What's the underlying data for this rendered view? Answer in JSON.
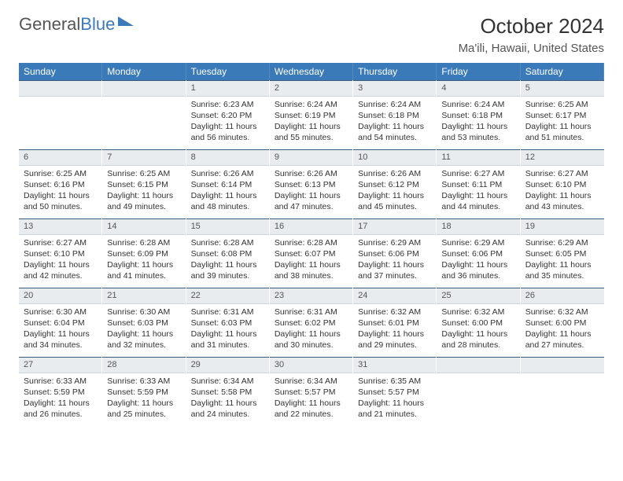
{
  "brand": {
    "part1": "General",
    "part2": "Blue"
  },
  "title": "October 2024",
  "location": "Ma'ili, Hawaii, United States",
  "colors": {
    "header_bg": "#3a7ab8",
    "daynum_bg": "#e8ecef",
    "border": "#3a5a7a",
    "text": "#333333"
  },
  "weekdays": [
    "Sunday",
    "Monday",
    "Tuesday",
    "Wednesday",
    "Thursday",
    "Friday",
    "Saturday"
  ],
  "weeks": [
    [
      {
        "n": "",
        "empty": true
      },
      {
        "n": "",
        "empty": true
      },
      {
        "n": "1",
        "sr": "Sunrise: 6:23 AM",
        "ss": "Sunset: 6:20 PM",
        "dl": "Daylight: 11 hours and 56 minutes."
      },
      {
        "n": "2",
        "sr": "Sunrise: 6:24 AM",
        "ss": "Sunset: 6:19 PM",
        "dl": "Daylight: 11 hours and 55 minutes."
      },
      {
        "n": "3",
        "sr": "Sunrise: 6:24 AM",
        "ss": "Sunset: 6:18 PM",
        "dl": "Daylight: 11 hours and 54 minutes."
      },
      {
        "n": "4",
        "sr": "Sunrise: 6:24 AM",
        "ss": "Sunset: 6:18 PM",
        "dl": "Daylight: 11 hours and 53 minutes."
      },
      {
        "n": "5",
        "sr": "Sunrise: 6:25 AM",
        "ss": "Sunset: 6:17 PM",
        "dl": "Daylight: 11 hours and 51 minutes."
      }
    ],
    [
      {
        "n": "6",
        "sr": "Sunrise: 6:25 AM",
        "ss": "Sunset: 6:16 PM",
        "dl": "Daylight: 11 hours and 50 minutes."
      },
      {
        "n": "7",
        "sr": "Sunrise: 6:25 AM",
        "ss": "Sunset: 6:15 PM",
        "dl": "Daylight: 11 hours and 49 minutes."
      },
      {
        "n": "8",
        "sr": "Sunrise: 6:26 AM",
        "ss": "Sunset: 6:14 PM",
        "dl": "Daylight: 11 hours and 48 minutes."
      },
      {
        "n": "9",
        "sr": "Sunrise: 6:26 AM",
        "ss": "Sunset: 6:13 PM",
        "dl": "Daylight: 11 hours and 47 minutes."
      },
      {
        "n": "10",
        "sr": "Sunrise: 6:26 AM",
        "ss": "Sunset: 6:12 PM",
        "dl": "Daylight: 11 hours and 45 minutes."
      },
      {
        "n": "11",
        "sr": "Sunrise: 6:27 AM",
        "ss": "Sunset: 6:11 PM",
        "dl": "Daylight: 11 hours and 44 minutes."
      },
      {
        "n": "12",
        "sr": "Sunrise: 6:27 AM",
        "ss": "Sunset: 6:10 PM",
        "dl": "Daylight: 11 hours and 43 minutes."
      }
    ],
    [
      {
        "n": "13",
        "sr": "Sunrise: 6:27 AM",
        "ss": "Sunset: 6:10 PM",
        "dl": "Daylight: 11 hours and 42 minutes."
      },
      {
        "n": "14",
        "sr": "Sunrise: 6:28 AM",
        "ss": "Sunset: 6:09 PM",
        "dl": "Daylight: 11 hours and 41 minutes."
      },
      {
        "n": "15",
        "sr": "Sunrise: 6:28 AM",
        "ss": "Sunset: 6:08 PM",
        "dl": "Daylight: 11 hours and 39 minutes."
      },
      {
        "n": "16",
        "sr": "Sunrise: 6:28 AM",
        "ss": "Sunset: 6:07 PM",
        "dl": "Daylight: 11 hours and 38 minutes."
      },
      {
        "n": "17",
        "sr": "Sunrise: 6:29 AM",
        "ss": "Sunset: 6:06 PM",
        "dl": "Daylight: 11 hours and 37 minutes."
      },
      {
        "n": "18",
        "sr": "Sunrise: 6:29 AM",
        "ss": "Sunset: 6:06 PM",
        "dl": "Daylight: 11 hours and 36 minutes."
      },
      {
        "n": "19",
        "sr": "Sunrise: 6:29 AM",
        "ss": "Sunset: 6:05 PM",
        "dl": "Daylight: 11 hours and 35 minutes."
      }
    ],
    [
      {
        "n": "20",
        "sr": "Sunrise: 6:30 AM",
        "ss": "Sunset: 6:04 PM",
        "dl": "Daylight: 11 hours and 34 minutes."
      },
      {
        "n": "21",
        "sr": "Sunrise: 6:30 AM",
        "ss": "Sunset: 6:03 PM",
        "dl": "Daylight: 11 hours and 32 minutes."
      },
      {
        "n": "22",
        "sr": "Sunrise: 6:31 AM",
        "ss": "Sunset: 6:03 PM",
        "dl": "Daylight: 11 hours and 31 minutes."
      },
      {
        "n": "23",
        "sr": "Sunrise: 6:31 AM",
        "ss": "Sunset: 6:02 PM",
        "dl": "Daylight: 11 hours and 30 minutes."
      },
      {
        "n": "24",
        "sr": "Sunrise: 6:32 AM",
        "ss": "Sunset: 6:01 PM",
        "dl": "Daylight: 11 hours and 29 minutes."
      },
      {
        "n": "25",
        "sr": "Sunrise: 6:32 AM",
        "ss": "Sunset: 6:00 PM",
        "dl": "Daylight: 11 hours and 28 minutes."
      },
      {
        "n": "26",
        "sr": "Sunrise: 6:32 AM",
        "ss": "Sunset: 6:00 PM",
        "dl": "Daylight: 11 hours and 27 minutes."
      }
    ],
    [
      {
        "n": "27",
        "sr": "Sunrise: 6:33 AM",
        "ss": "Sunset: 5:59 PM",
        "dl": "Daylight: 11 hours and 26 minutes."
      },
      {
        "n": "28",
        "sr": "Sunrise: 6:33 AM",
        "ss": "Sunset: 5:59 PM",
        "dl": "Daylight: 11 hours and 25 minutes."
      },
      {
        "n": "29",
        "sr": "Sunrise: 6:34 AM",
        "ss": "Sunset: 5:58 PM",
        "dl": "Daylight: 11 hours and 24 minutes."
      },
      {
        "n": "30",
        "sr": "Sunrise: 6:34 AM",
        "ss": "Sunset: 5:57 PM",
        "dl": "Daylight: 11 hours and 22 minutes."
      },
      {
        "n": "31",
        "sr": "Sunrise: 6:35 AM",
        "ss": "Sunset: 5:57 PM",
        "dl": "Daylight: 11 hours and 21 minutes."
      },
      {
        "n": "",
        "empty": true
      },
      {
        "n": "",
        "empty": true
      }
    ]
  ]
}
